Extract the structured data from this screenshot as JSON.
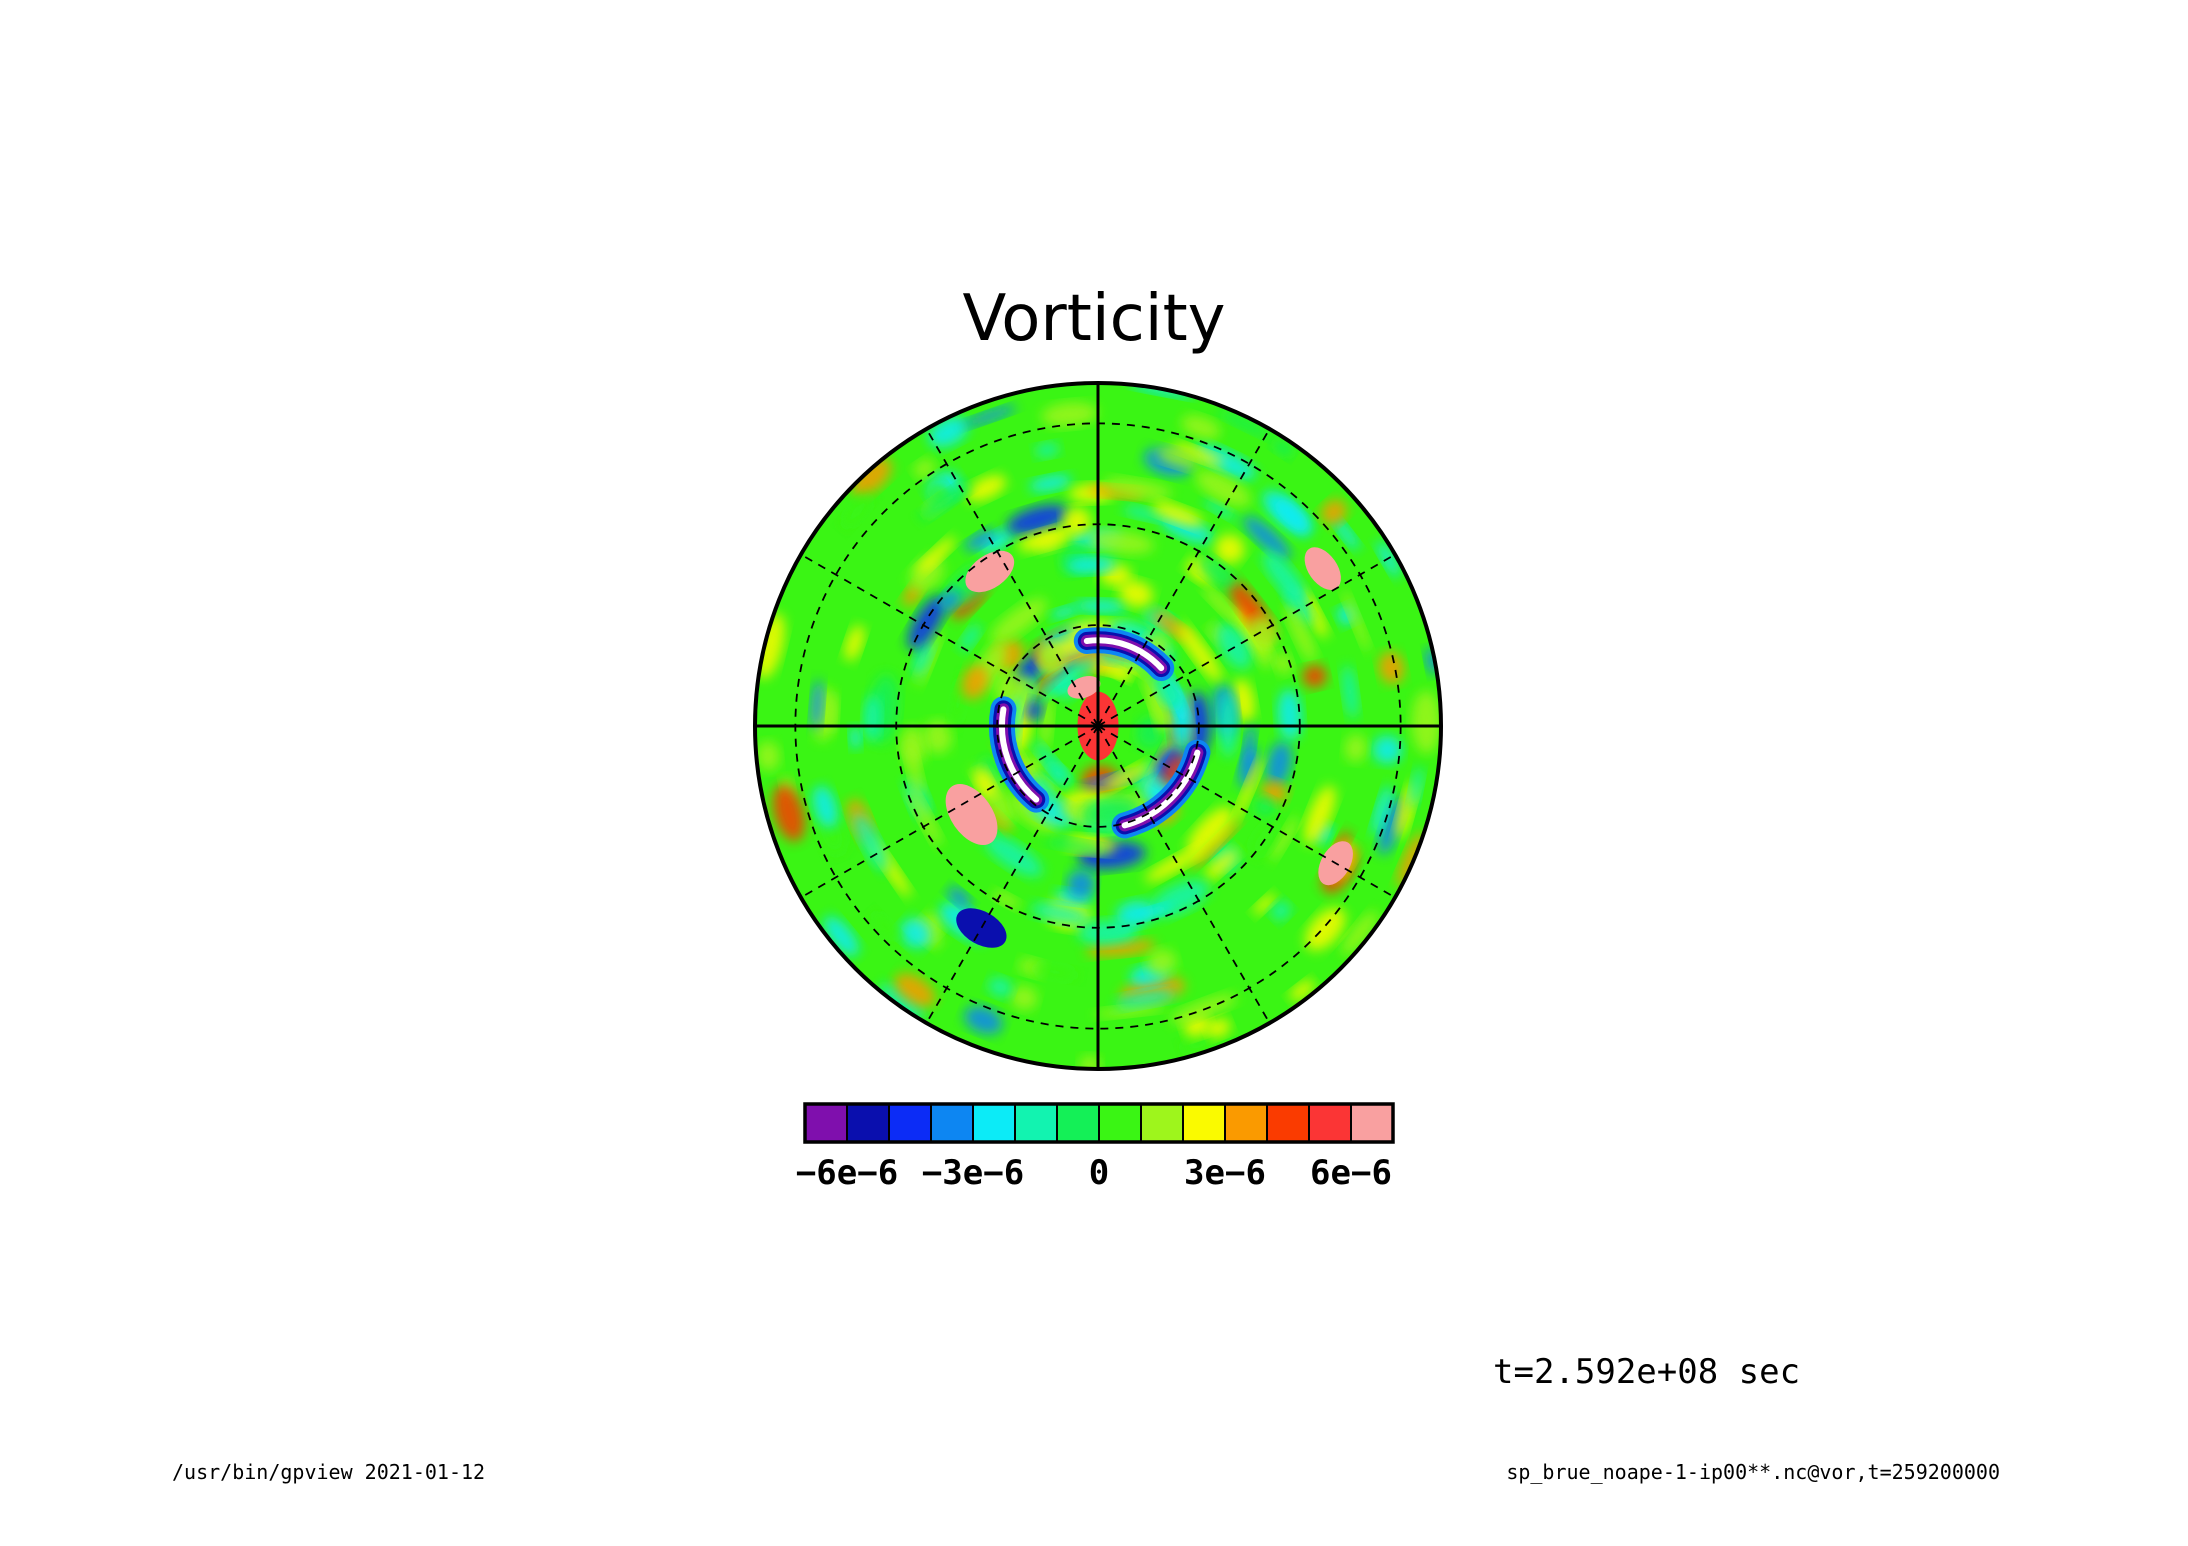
{
  "chart_data": {
    "type": "heatmap",
    "projection": "polar-stereographic",
    "title": "Vorticity",
    "colorbar": {
      "levels": [
        -7e-06,
        -6e-06,
        -5e-06,
        -4e-06,
        -3e-06,
        -2e-06,
        -1e-06,
        0,
        1e-06,
        2e-06,
        3e-06,
        4e-06,
        5e-06,
        6e-06,
        7e-06
      ],
      "colors": [
        "#7f0fad",
        "#0a0fae",
        "#0c2cf6",
        "#0d86f2",
        "#0cebf7",
        "#12f3b0",
        "#14f057",
        "#3af514",
        "#9ef51c",
        "#fafa00",
        "#fa9a00",
        "#fa3b00",
        "#fb3535",
        "#f9a0a0"
      ],
      "tick_labels": [
        "-6e-6",
        "-3e-6",
        "0",
        "3e-6",
        "6e-6"
      ],
      "tick_values": [
        -6e-06,
        -3e-06,
        0,
        3e-06,
        6e-06
      ]
    },
    "features": [
      {
        "kind": "band",
        "angle_deg": 70,
        "r": 0.25,
        "arc_deg": 55,
        "value": -7e-06,
        "core": "white"
      },
      {
        "kind": "band",
        "angle_deg": 200,
        "r": 0.28,
        "arc_deg": 60,
        "value": -7e-06,
        "core": "white"
      },
      {
        "kind": "band",
        "angle_deg": 315,
        "r": 0.3,
        "arc_deg": 60,
        "value": -7e-06,
        "core": "white"
      },
      {
        "kind": "blob",
        "angle_deg": 0,
        "r": 0.0,
        "size": 0.1,
        "value": 5e-06
      },
      {
        "kind": "blob",
        "angle_deg": 110,
        "r": 0.12,
        "size": 0.05,
        "value": 7e-06
      },
      {
        "kind": "blob",
        "angle_deg": 215,
        "r": 0.45,
        "size": 0.1,
        "value": 6e-06
      },
      {
        "kind": "blob",
        "angle_deg": 125,
        "r": 0.55,
        "size": 0.08,
        "value": 6e-06
      },
      {
        "kind": "blob",
        "angle_deg": 240,
        "r": 0.68,
        "size": 0.08,
        "value": -6e-06
      },
      {
        "kind": "blob",
        "angle_deg": 35,
        "r": 0.8,
        "size": 0.07,
        "value": 6e-06
      },
      {
        "kind": "blob",
        "angle_deg": 330,
        "r": 0.8,
        "size": 0.07,
        "value": 6e-06
      }
    ],
    "grid": {
      "meridian_spacing_deg": 30,
      "latitude_circles": 3
    }
  },
  "annotations": {
    "time": "t=2.592e+08 sec",
    "footer_left": "/usr/bin/gpview  2021-01-12",
    "footer_right": "sp_brue_noape-1-ip00**.nc@vor,t=259200000"
  }
}
